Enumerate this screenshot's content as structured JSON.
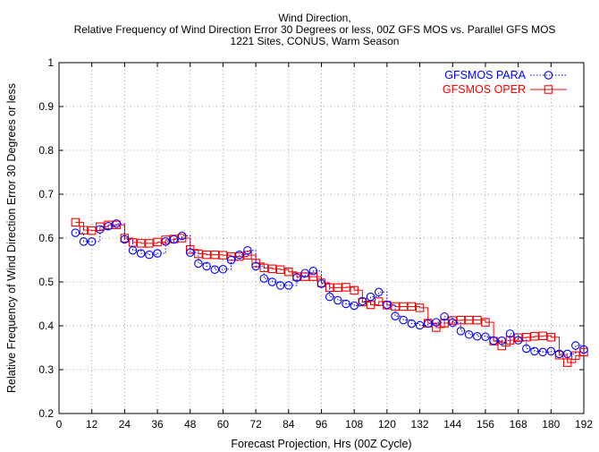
{
  "chart_data": {
    "type": "line",
    "title": [
      "Wind Direction,",
      "Relative Frequency of Wind Direction Error 30 Degrees or less, 00Z GFS MOS vs. Parallel GFS MOS",
      "1221 Sites, CONUS, Warm Season"
    ],
    "xlabel": "Forecast Projection, Hrs (00Z Cycle)",
    "ylabel": "Relative Frequency of Wind Direction Error 30 Degrees or less",
    "xlim": [
      0,
      192
    ],
    "ylim": [
      0.2,
      1.0
    ],
    "xticks": [
      0,
      12,
      24,
      36,
      48,
      60,
      72,
      84,
      96,
      108,
      120,
      132,
      144,
      156,
      168,
      180,
      192
    ],
    "xtick_labels": [
      "0",
      "12",
      "24",
      "36",
      "48",
      "60",
      "72",
      "84",
      "96",
      "108",
      "120",
      "132",
      "144",
      "156",
      "168",
      "180",
      "192"
    ],
    "yticks": [
      0.2,
      0.3,
      0.4,
      0.5,
      0.6,
      0.7,
      0.8,
      0.9,
      1.0
    ],
    "ytick_labels": [
      "0.2",
      "0.3",
      "0.4",
      "0.5",
      "0.6",
      "0.7",
      "0.8",
      "0.9",
      "1"
    ],
    "grid": true,
    "legend_position": "top-right",
    "x": [
      6,
      9,
      12,
      15,
      18,
      21,
      24,
      27,
      30,
      33,
      36,
      39,
      42,
      45,
      48,
      51,
      54,
      57,
      60,
      63,
      66,
      69,
      72,
      75,
      78,
      81,
      84,
      87,
      90,
      93,
      96,
      99,
      102,
      105,
      108,
      111,
      114,
      117,
      120,
      123,
      126,
      129,
      132,
      135,
      138,
      141,
      144,
      147,
      150,
      153,
      156,
      159,
      162,
      165,
      168,
      171,
      174,
      177,
      180,
      183,
      186,
      189,
      192
    ],
    "series": [
      {
        "name": "GFSMOS PARA",
        "color": "#0000ff",
        "marker": "circle",
        "line_style": "dotted",
        "values": [
          0.612,
          0.592,
          0.592,
          0.62,
          0.627,
          0.633,
          0.597,
          0.572,
          0.565,
          0.562,
          0.565,
          0.592,
          0.597,
          0.605,
          0.567,
          0.542,
          0.536,
          0.528,
          0.529,
          0.55,
          0.562,
          0.572,
          0.536,
          0.508,
          0.5,
          0.492,
          0.492,
          0.51,
          0.52,
          0.525,
          0.496,
          0.466,
          0.458,
          0.45,
          0.446,
          0.456,
          0.466,
          0.477,
          0.448,
          0.422,
          0.413,
          0.405,
          0.401,
          0.405,
          0.408,
          0.421,
          0.407,
          0.388,
          0.38,
          0.376,
          0.375,
          0.366,
          0.366,
          0.382,
          0.367,
          0.348,
          0.342,
          0.34,
          0.342,
          0.336,
          0.336,
          0.355,
          0.346
        ]
      },
      {
        "name": "GFSMOS OPER",
        "color": "#ff0000",
        "marker": "square",
        "line_style": "solid",
        "values": [
          0.636,
          0.618,
          0.617,
          0.626,
          0.63,
          0.63,
          0.6,
          0.59,
          0.588,
          0.588,
          0.591,
          0.596,
          0.598,
          0.6,
          0.574,
          0.564,
          0.562,
          0.562,
          0.561,
          0.558,
          0.558,
          0.561,
          0.543,
          0.532,
          0.53,
          0.528,
          0.523,
          0.512,
          0.512,
          0.512,
          0.498,
          0.487,
          0.487,
          0.488,
          0.481,
          0.454,
          0.448,
          0.455,
          0.447,
          0.444,
          0.444,
          0.444,
          0.441,
          0.406,
          0.396,
          0.406,
          0.412,
          0.413,
          0.413,
          0.413,
          0.408,
          0.365,
          0.354,
          0.367,
          0.373,
          0.374,
          0.376,
          0.377,
          0.374,
          0.333,
          0.316,
          0.332,
          0.34
        ]
      }
    ]
  }
}
